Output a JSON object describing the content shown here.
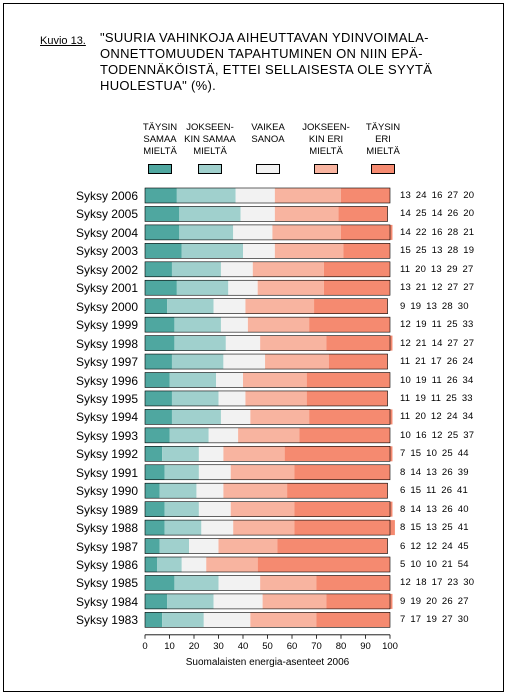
{
  "figure_label": "Kuvio 13.",
  "title": "\"SUURIA VAHINKOJA AIHEUTTAVAN YDINVOIMALA-\nONNETTOMUUDEN TAPAHTUMINEN ON NIIN EPÄ-\nTODENNÄKÖISTÄ, ETTEI SELLAISESTA OLE SYYTÄ\nHUOLESTUA\" (%).",
  "source_note": "Suomalaisten energia-asenteet 2006",
  "colors": [
    "#4fa7a0",
    "#a0d0cd",
    "#f2f2f2",
    "#f8b4a0",
    "#f58a70"
  ],
  "chart_data": {
    "type": "bar",
    "orientation": "horizontal",
    "stacked": true,
    "title": "\"SUURIA VAHINKOJA AIHEUTTAVAN YDINVOIMALAONNETTOMUUDEN TAPAHTUMINEN ON NIIN EPÄTODENNÄKÖISTÄ, ETTEI SELLAISESTA OLE SYYTÄ HUOLESTUA\" (%).",
    "xlabel": "Suomalaisten energia-asenteet 2006",
    "xlim": [
      0,
      100
    ],
    "xticks": [
      0,
      10,
      20,
      30,
      40,
      50,
      60,
      70,
      80,
      90,
      100
    ],
    "legend_position": "top",
    "categories": [
      "Syksy 2006",
      "Syksy 2005",
      "Syksy 2004",
      "Syksy 2003",
      "Syksy 2002",
      "Syksy 2001",
      "Syksy 2000",
      "Syksy 1999",
      "Syksy 1998",
      "Syksy 1997",
      "Syksy 1996",
      "Syksy 1995",
      "Syksy 1994",
      "Syksy 1993",
      "Syksy 1992",
      "Syksy 1991",
      "Syksy 1990",
      "Syksy 1989",
      "Syksy 1988",
      "Syksy 1987",
      "Syksy 1986",
      "Syksy 1985",
      "Syksy 1984",
      "Syksy 1983"
    ],
    "series": [
      {
        "name": "TÄYSIN\nSAMAA\nMIELTÄ",
        "values": [
          13,
          14,
          14,
          15,
          11,
          13,
          9,
          12,
          12,
          11,
          10,
          11,
          11,
          10,
          7,
          8,
          6,
          8,
          8,
          6,
          5,
          12,
          9,
          7
        ]
      },
      {
        "name": "JOKSEEN-\nKIN SAMAA\nMIELTÄ",
        "values": [
          24,
          25,
          22,
          25,
          20,
          21,
          19,
          19,
          21,
          21,
          19,
          19,
          20,
          16,
          15,
          14,
          15,
          14,
          15,
          12,
          10,
          18,
          19,
          17
        ]
      },
      {
        "name": "VAIKEA\nSANOA",
        "values": [
          16,
          14,
          16,
          13,
          13,
          12,
          13,
          11,
          14,
          17,
          11,
          11,
          12,
          12,
          10,
          13,
          11,
          13,
          13,
          12,
          10,
          17,
          20,
          19
        ]
      },
      {
        "name": "JOKSEEN-\nKIN ERI\nMIELTÄ",
        "values": [
          27,
          26,
          28,
          28,
          29,
          27,
          28,
          25,
          27,
          26,
          26,
          25,
          24,
          25,
          25,
          26,
          26,
          26,
          25,
          24,
          21,
          23,
          26,
          27
        ]
      },
      {
        "name": "TÄYSIN\nERI\nMIELTÄ",
        "values": [
          20,
          20,
          21,
          19,
          27,
          27,
          30,
          33,
          27,
          24,
          34,
          33,
          34,
          37,
          44,
          39,
          41,
          40,
          41,
          45,
          54,
          30,
          27,
          30
        ]
      }
    ]
  }
}
